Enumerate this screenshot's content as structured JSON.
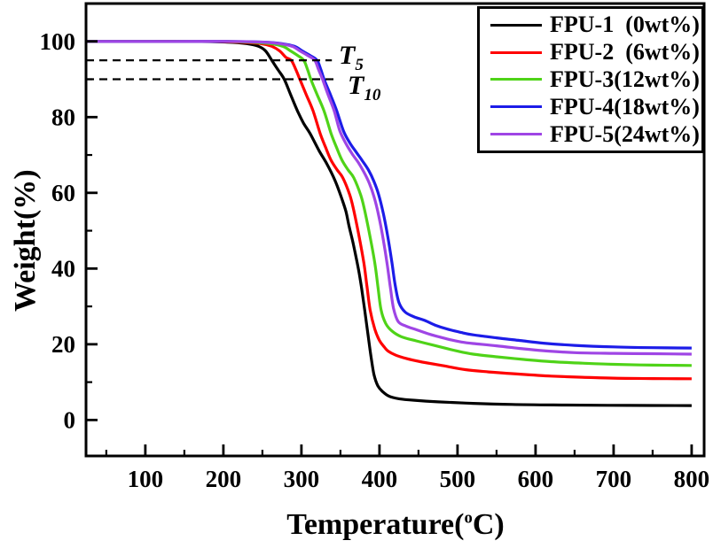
{
  "figure": {
    "background": "#ffffff"
  },
  "chart_data": {
    "type": "line",
    "title": "",
    "xlabel": {
      "text": "Temperature(",
      "superscript": "o",
      "suffix": "C)"
    },
    "ylabel": "Weight(%)",
    "x_axis": {
      "range": [
        24,
        816
      ],
      "major_ticks": [
        100,
        200,
        300,
        400,
        500,
        600,
        700,
        800
      ],
      "minor_ticks": [
        50,
        150,
        250,
        350,
        450,
        550,
        650,
        750
      ]
    },
    "y_axis": {
      "range": [
        -9.5,
        110
      ],
      "major_ticks": [
        0,
        20,
        40,
        60,
        80,
        100
      ],
      "minor_ticks": [
        10,
        30,
        50,
        70,
        90
      ]
    },
    "grid": false,
    "legend": {
      "position": "top-right",
      "border": true
    },
    "annotations": [
      {
        "id": "T5",
        "label_main": "T",
        "label_sub": "5",
        "line_weight_pct": 95,
        "line_from_T": 24,
        "line_to_T": 339
      },
      {
        "id": "T10",
        "label_main": "T",
        "label_sub": "10",
        "line_weight_pct": 90,
        "line_from_T": 24,
        "line_to_T": 343
      }
    ],
    "series": [
      {
        "name": "FPU-1  (0wt%)",
        "color": "#000000",
        "points": [
          [
            25,
            100
          ],
          [
            100,
            100
          ],
          [
            160,
            100
          ],
          [
            205,
            99.8
          ],
          [
            230,
            99.4
          ],
          [
            245,
            98.7
          ],
          [
            254,
            97.5
          ],
          [
            262,
            95
          ],
          [
            270,
            92.5
          ],
          [
            278,
            90
          ],
          [
            286,
            86
          ],
          [
            295,
            81.6
          ],
          [
            303,
            78.3
          ],
          [
            311,
            75.7
          ],
          [
            323,
            71
          ],
          [
            333,
            67.5
          ],
          [
            343,
            63.3
          ],
          [
            351,
            58.9
          ],
          [
            357,
            55.1
          ],
          [
            361,
            51.2
          ],
          [
            366,
            46.9
          ],
          [
            370,
            43
          ],
          [
            374,
            38.8
          ],
          [
            377,
            34.9
          ],
          [
            381,
            29.1
          ],
          [
            385,
            23
          ],
          [
            389,
            17
          ],
          [
            393,
            12
          ],
          [
            398,
            9
          ],
          [
            404,
            7.5
          ],
          [
            412,
            6.3
          ],
          [
            425,
            5.6
          ],
          [
            445,
            5.2
          ],
          [
            475,
            4.8
          ],
          [
            520,
            4.4
          ],
          [
            570,
            4.1
          ],
          [
            640,
            3.95
          ],
          [
            720,
            3.85
          ],
          [
            800,
            3.8
          ]
        ]
      },
      {
        "name": "FPU-2  (6wt%)",
        "color": "#FF0000",
        "points": [
          [
            25,
            100
          ],
          [
            110,
            100
          ],
          [
            175,
            100
          ],
          [
            220,
            99.8
          ],
          [
            248,
            99.4
          ],
          [
            262,
            98.7
          ],
          [
            272,
            97.5
          ],
          [
            280,
            95.8
          ],
          [
            287,
            95
          ],
          [
            293,
            92.5
          ],
          [
            298,
            90
          ],
          [
            306,
            86
          ],
          [
            315,
            81.6
          ],
          [
            324,
            75.7
          ],
          [
            331,
            72
          ],
          [
            338,
            68.6
          ],
          [
            346,
            66
          ],
          [
            353,
            64
          ],
          [
            362,
            59.4
          ],
          [
            367,
            55.4
          ],
          [
            374,
            48.4
          ],
          [
            380,
            41.5
          ],
          [
            384,
            35.3
          ],
          [
            388,
            29.1
          ],
          [
            394,
            24
          ],
          [
            400,
            21
          ],
          [
            406,
            19.3
          ],
          [
            411,
            18.2
          ],
          [
            420,
            17.2
          ],
          [
            435,
            16.2
          ],
          [
            455,
            15.3
          ],
          [
            480,
            14.4
          ],
          [
            510,
            13.3
          ],
          [
            540,
            12.7
          ],
          [
            580,
            12.1
          ],
          [
            620,
            11.6
          ],
          [
            660,
            11.3
          ],
          [
            700,
            11.05
          ],
          [
            750,
            10.95
          ],
          [
            800,
            10.9
          ]
        ]
      },
      {
        "name": "FPU-3(12wt%)",
        "color": "#4FD318",
        "points": [
          [
            25,
            100
          ],
          [
            130,
            100
          ],
          [
            195,
            100
          ],
          [
            235,
            99.8
          ],
          [
            260,
            99.4
          ],
          [
            276,
            98.7
          ],
          [
            286,
            97.5
          ],
          [
            295,
            96.3
          ],
          [
            303,
            95
          ],
          [
            308,
            92.5
          ],
          [
            312,
            90
          ],
          [
            320,
            86
          ],
          [
            329,
            81.6
          ],
          [
            338,
            75.7
          ],
          [
            345,
            72
          ],
          [
            352,
            68.6
          ],
          [
            360,
            66
          ],
          [
            367,
            64
          ],
          [
            376,
            59.4
          ],
          [
            381,
            55.4
          ],
          [
            388,
            48.4
          ],
          [
            394,
            41.5
          ],
          [
            398,
            35.3
          ],
          [
            402,
            29.1
          ],
          [
            408,
            25.5
          ],
          [
            416,
            23.5
          ],
          [
            428,
            22
          ],
          [
            447,
            20.9
          ],
          [
            470,
            19.7
          ],
          [
            500,
            18.2
          ],
          [
            520,
            17.4
          ],
          [
            550,
            16.7
          ],
          [
            585,
            16
          ],
          [
            620,
            15.4
          ],
          [
            660,
            15
          ],
          [
            700,
            14.7
          ],
          [
            750,
            14.5
          ],
          [
            800,
            14.4
          ]
        ]
      },
      {
        "name": "FPU-4(18wt%)",
        "color": "#1C1CE8",
        "points": [
          [
            25,
            100
          ],
          [
            140,
            100
          ],
          [
            210,
            100
          ],
          [
            253,
            99.8
          ],
          [
            275,
            99.4
          ],
          [
            291,
            98.7
          ],
          [
            301,
            97.5
          ],
          [
            311,
            96.3
          ],
          [
            320,
            95
          ],
          [
            325,
            92.5
          ],
          [
            329,
            90
          ],
          [
            337,
            86
          ],
          [
            345,
            81.8
          ],
          [
            354,
            76.3
          ],
          [
            362,
            73.2
          ],
          [
            370,
            70.8
          ],
          [
            378,
            68.5
          ],
          [
            386,
            66
          ],
          [
            393,
            63
          ],
          [
            399,
            59.5
          ],
          [
            405,
            54.5
          ],
          [
            411,
            48
          ],
          [
            416,
            41.5
          ],
          [
            420,
            35.8
          ],
          [
            425,
            31
          ],
          [
            433,
            28.5
          ],
          [
            445,
            27.2
          ],
          [
            458,
            26.3
          ],
          [
            472,
            25
          ],
          [
            487,
            24
          ],
          [
            505,
            23.1
          ],
          [
            520,
            22.5
          ],
          [
            550,
            21.7
          ],
          [
            580,
            21
          ],
          [
            610,
            20.3
          ],
          [
            650,
            19.7
          ],
          [
            700,
            19.3
          ],
          [
            750,
            19.1
          ],
          [
            800,
            19
          ]
        ]
      },
      {
        "name": "FPU-5(24wt%)",
        "color": "#9F45E5",
        "points": [
          [
            25,
            100
          ],
          [
            135,
            100
          ],
          [
            205,
            100
          ],
          [
            250,
            99.8
          ],
          [
            272,
            99.4
          ],
          [
            288,
            98.7
          ],
          [
            298,
            97.5
          ],
          [
            308,
            96.3
          ],
          [
            317,
            95
          ],
          [
            322,
            92.5
          ],
          [
            327,
            90
          ],
          [
            334,
            86
          ],
          [
            342,
            81.6
          ],
          [
            349,
            76.5
          ],
          [
            357,
            73
          ],
          [
            365,
            70.3
          ],
          [
            373,
            68
          ],
          [
            380,
            65.5
          ],
          [
            387,
            62.5
          ],
          [
            393,
            59
          ],
          [
            399,
            54
          ],
          [
            405,
            47.5
          ],
          [
            410,
            41
          ],
          [
            414,
            35
          ],
          [
            418,
            29.5
          ],
          [
            424,
            26
          ],
          [
            434,
            24.8
          ],
          [
            448,
            23.8
          ],
          [
            465,
            22.6
          ],
          [
            487,
            21.4
          ],
          [
            505,
            20.6
          ],
          [
            520,
            20.2
          ],
          [
            550,
            19.6
          ],
          [
            580,
            18.9
          ],
          [
            610,
            18.3
          ],
          [
            650,
            17.8
          ],
          [
            700,
            17.6
          ],
          [
            750,
            17.5
          ],
          [
            800,
            17.4
          ]
        ]
      }
    ],
    "final_residue_pct_at_800C": {
      "FPU-1": 3.8,
      "FPU-2": 10.9,
      "FPU-3": 14.4,
      "FPU-4": 19.0,
      "FPU-5": 17.4
    }
  }
}
